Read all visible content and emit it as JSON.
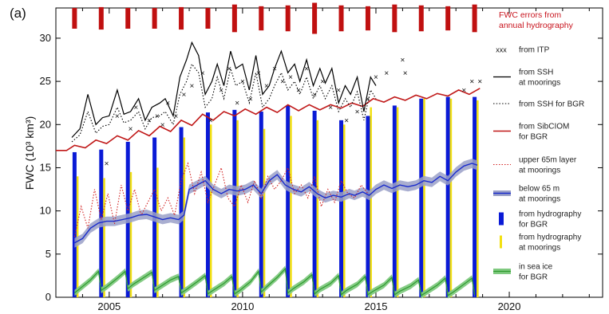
{
  "chart_data": {
    "type": "line",
    "panel_label": "(a)",
    "ylabel": "FWC (10³ km³)",
    "xlim": [
      2003.0,
      2023.5
    ],
    "ylim": [
      0,
      33.5
    ],
    "xticks": [
      2005,
      2010,
      2015,
      2020
    ],
    "yticks": [
      0,
      5,
      10,
      15,
      20,
      25,
      30
    ],
    "grid": false,
    "legend_position": "right",
    "colors": {
      "ssh_moorings": "#000000",
      "ssh_bgr": "#000000",
      "sibciom": "#c01818",
      "upper65": "#d22222",
      "below65_line": "#1a2ccc",
      "below65_band": "#9aa0c8",
      "hydro_bgr": "#0a1ad6",
      "hydro_moorings": "#f2e010",
      "sea_ice_band": "#7fc97f",
      "sea_ice_line": "#2e9a2e",
      "errors": "#c01010",
      "itp": "#111111"
    },
    "errors_note": {
      "line1": "FWC errors from",
      "line2": "annual hydrography",
      "x": [
        2003.7,
        2004.7,
        2005.7,
        2006.7,
        2007.7,
        2008.7,
        2009.7,
        2010.7,
        2011.7,
        2012.7,
        2013.7,
        2014.7,
        2015.7,
        2016.7,
        2017.7,
        2018.7
      ],
      "half_height": [
        1.2,
        1.3,
        1.2,
        1.2,
        1.3,
        1.2,
        1.6,
        1.4,
        1.5,
        1.8,
        1.5,
        1.4,
        1.6,
        1.5,
        1.4,
        1.6
      ]
    },
    "series": [
      {
        "key": "ssh_moorings",
        "name": "from SSH at moorings",
        "x": [
          2003.6,
          2003.9,
          2004.2,
          2004.5,
          2004.75,
          2005.0,
          2005.3,
          2005.55,
          2005.8,
          2006.1,
          2006.35,
          2006.6,
          2006.9,
          2007.1,
          2007.4,
          2007.65,
          2007.9,
          2008.1,
          2008.35,
          2008.6,
          2008.85,
          2009.05,
          2009.3,
          2009.55,
          2009.75,
          2010.0,
          2010.25,
          2010.5,
          2010.75,
          2011.0,
          2011.2,
          2011.45,
          2011.7,
          2011.95,
          2012.15,
          2012.4,
          2012.65,
          2012.9,
          2013.1,
          2013.35,
          2013.6,
          2013.85,
          2014.05,
          2014.3,
          2014.55,
          2014.8,
          2015.0
        ],
        "y": [
          18.5,
          19.5,
          23.5,
          20.0,
          20.8,
          21.0,
          24.0,
          21.2,
          21.5,
          23.0,
          20.5,
          22.0,
          22.5,
          23.0,
          21.0,
          25.5,
          27.5,
          29.5,
          28.0,
          23.5,
          25.0,
          27.0,
          24.5,
          28.5,
          26.5,
          27.0,
          24.0,
          28.0,
          23.5,
          24.5,
          26.5,
          28.5,
          26.0,
          27.0,
          25.0,
          27.5,
          24.5,
          26.5,
          24.8,
          26.5,
          22.5,
          24.5,
          23.5,
          25.5,
          21.5,
          25.5,
          24.5
        ]
      },
      {
        "key": "ssh_bgr",
        "name": "from SSH for BGR",
        "x": [
          2003.6,
          2003.9,
          2004.2,
          2004.5,
          2004.75,
          2005.0,
          2005.3,
          2005.55,
          2005.8,
          2006.1,
          2006.35,
          2006.6,
          2006.9,
          2007.1,
          2007.4,
          2007.65,
          2007.9,
          2008.1,
          2008.35,
          2008.6,
          2008.85,
          2009.05,
          2009.3,
          2009.55,
          2009.75,
          2010.0,
          2010.25,
          2010.5,
          2010.75,
          2011.0,
          2011.2,
          2011.45,
          2011.7,
          2011.95,
          2012.15,
          2012.4,
          2012.65,
          2012.9,
          2013.1,
          2013.35,
          2013.6,
          2013.85,
          2014.05,
          2014.3,
          2014.55,
          2014.8,
          2015.0
        ],
        "y": [
          18.0,
          18.8,
          21.5,
          19.0,
          19.8,
          20.0,
          22.0,
          20.2,
          20.5,
          21.5,
          19.5,
          20.8,
          21.0,
          21.5,
          20.0,
          23.5,
          25.0,
          27.0,
          26.0,
          22.0,
          23.0,
          25.5,
          23.0,
          26.5,
          24.5,
          25.0,
          22.5,
          26.0,
          22.0,
          23.0,
          24.5,
          26.0,
          24.0,
          25.0,
          23.5,
          25.5,
          23.0,
          24.5,
          23.0,
          24.5,
          21.5,
          23.0,
          22.0,
          23.8,
          20.5,
          24.0,
          23.0
        ]
      },
      {
        "key": "sibciom",
        "name": "from SibCIOM for BGR",
        "x": [
          2003.0,
          2003.4,
          2003.7,
          2004.1,
          2004.5,
          2004.9,
          2005.3,
          2005.7,
          2006.1,
          2006.5,
          2006.9,
          2007.3,
          2007.7,
          2008.1,
          2008.5,
          2008.9,
          2009.3,
          2009.7,
          2010.1,
          2010.5,
          2010.9,
          2011.3,
          2011.7,
          2012.1,
          2012.5,
          2012.9,
          2013.3,
          2013.7,
          2014.1,
          2014.5,
          2014.9,
          2015.3,
          2015.7,
          2016.1,
          2016.5,
          2016.9,
          2017.3,
          2017.7,
          2018.1,
          2018.5,
          2018.9
        ],
        "y": [
          17.0,
          17.0,
          17.6,
          17.3,
          18.2,
          17.8,
          18.7,
          18.2,
          19.3,
          18.7,
          19.8,
          19.2,
          20.5,
          19.9,
          21.2,
          20.5,
          21.5,
          21.0,
          21.8,
          21.2,
          22.0,
          21.4,
          22.3,
          21.6,
          22.3,
          21.7,
          22.3,
          21.9,
          22.5,
          22.1,
          23.0,
          22.6,
          23.2,
          22.8,
          23.4,
          23.0,
          23.6,
          23.3,
          24.0,
          23.5,
          24.2
        ]
      },
      {
        "key": "upper65",
        "name": "upper 65m layer at moorings",
        "x": [
          2003.7,
          2003.95,
          2004.2,
          2004.45,
          2004.7,
          2004.95,
          2005.2,
          2005.45,
          2005.7,
          2005.95,
          2006.2,
          2006.45,
          2006.7,
          2006.95,
          2007.2,
          2007.45,
          2007.7,
          2007.95,
          2008.2,
          2008.45,
          2008.7,
          2008.95,
          2009.2,
          2009.45,
          2009.7,
          2009.95,
          2010.2,
          2010.45,
          2010.7,
          2010.95,
          2011.2,
          2011.45,
          2011.7,
          2011.95,
          2012.2,
          2012.45,
          2012.7,
          2012.95,
          2013.2,
          2013.45,
          2013.7,
          2013.95,
          2014.2,
          2014.45,
          2014.7
        ],
        "y": [
          7.0,
          10.5,
          8.0,
          12.5,
          9.0,
          12.0,
          8.5,
          13.0,
          10.0,
          12.5,
          9.5,
          11.0,
          12.5,
          10.0,
          11.5,
          9.5,
          13.5,
          15.5,
          12.0,
          14.5,
          11.0,
          13.0,
          15.0,
          11.5,
          10.5,
          13.0,
          11.0,
          13.5,
          11.5,
          14.0,
          12.5,
          13.5,
          15.0,
          12.0,
          13.0,
          11.5,
          14.0,
          10.5,
          12.5,
          11.0,
          13.5,
          12.0,
          11.5,
          13.0,
          12.0
        ]
      },
      {
        "key": "below65",
        "name": "below 65 m at moorings",
        "x": [
          2003.7,
          2004.0,
          2004.3,
          2004.6,
          2004.9,
          2005.2,
          2005.5,
          2005.8,
          2006.1,
          2006.4,
          2006.7,
          2007.0,
          2007.3,
          2007.6,
          2007.8,
          2008.0,
          2008.3,
          2008.6,
          2008.9,
          2009.2,
          2009.5,
          2009.8,
          2010.1,
          2010.4,
          2010.7,
          2011.0,
          2011.3,
          2011.6,
          2011.9,
          2012.2,
          2012.5,
          2012.8,
          2013.1,
          2013.4,
          2013.7,
          2014.0,
          2014.2,
          2014.5,
          2014.75,
          2015.0,
          2015.3,
          2015.6,
          2015.9,
          2016.2,
          2016.5,
          2016.8,
          2017.1,
          2017.4,
          2017.7,
          2018.0,
          2018.3,
          2018.6,
          2018.8
        ],
        "y": [
          6.3,
          6.8,
          8.0,
          8.6,
          8.8,
          8.8,
          9.0,
          9.2,
          9.5,
          9.6,
          9.3,
          9.0,
          9.2,
          9.0,
          9.5,
          12.5,
          13.0,
          13.5,
          12.5,
          12.0,
          12.5,
          12.3,
          12.5,
          13.0,
          12.0,
          13.5,
          14.2,
          13.0,
          12.5,
          12.2,
          12.8,
          12.0,
          11.5,
          11.8,
          11.6,
          12.0,
          11.8,
          12.2,
          11.8,
          12.5,
          13.0,
          12.6,
          13.0,
          12.8,
          13.0,
          13.5,
          13.3,
          14.0,
          13.5,
          14.5,
          15.2,
          15.5,
          15.3
        ]
      },
      {
        "key": "sea_ice",
        "name": "in sea ice for BGR",
        "x": [
          2003.7,
          2003.9,
          2004.3,
          2004.6,
          2004.7,
          2004.9,
          2005.3,
          2005.6,
          2005.7,
          2005.9,
          2006.3,
          2006.6,
          2006.7,
          2006.9,
          2007.3,
          2007.6,
          2007.7,
          2007.9,
          2008.3,
          2008.6,
          2008.7,
          2008.9,
          2009.3,
          2009.6,
          2009.7,
          2009.9,
          2010.3,
          2010.6,
          2010.7,
          2010.9,
          2011.3,
          2011.6,
          2011.7,
          2011.9,
          2012.3,
          2012.6,
          2012.7,
          2012.9,
          2013.3,
          2013.6,
          2013.7,
          2013.9,
          2014.3,
          2014.6,
          2014.7,
          2014.9,
          2015.3,
          2015.6,
          2015.7,
          2015.9,
          2016.3,
          2016.6,
          2016.7,
          2016.9,
          2017.3,
          2017.6,
          2017.7,
          2017.9,
          2018.3,
          2018.6,
          2018.7
        ],
        "y": [
          0.5,
          1.0,
          2.0,
          3.0,
          0.8,
          1.2,
          2.2,
          3.0,
          1.0,
          1.5,
          2.3,
          2.9,
          0.8,
          1.2,
          2.0,
          2.4,
          0.5,
          0.9,
          1.8,
          2.5,
          0.4,
          0.8,
          1.6,
          2.4,
          0.4,
          0.8,
          1.8,
          3.0,
          0.6,
          1.2,
          2.3,
          3.3,
          0.5,
          1.0,
          1.8,
          2.6,
          0.4,
          0.9,
          1.6,
          2.5,
          0.3,
          0.8,
          1.5,
          2.4,
          0.3,
          0.7,
          1.4,
          2.3,
          0.3,
          0.7,
          1.3,
          2.0,
          0.2,
          0.6,
          1.4,
          2.2,
          0.2,
          0.6,
          1.5,
          2.2,
          0.3
        ]
      },
      {
        "key": "itp",
        "name": "from ITP",
        "x": [
          2004.9,
          2005.3,
          2005.8,
          2006.0,
          2006.5,
          2006.8,
          2007.0,
          2007.2,
          2007.5,
          2007.8,
          2008.1,
          2008.5,
          2008.8,
          2009.2,
          2009.5,
          2009.8,
          2010.0,
          2010.3,
          2010.6,
          2010.9,
          2011.2,
          2011.5,
          2011.8,
          2012.1,
          2012.4,
          2012.7,
          2013.0,
          2013.3,
          2013.6,
          2013.9,
          2014.3,
          2014.7,
          2015.0,
          2015.4,
          2016.0,
          2016.1,
          2018.3,
          2018.6,
          2018.9
        ],
        "y": [
          15.5,
          21.0,
          19.5,
          22.0,
          20.5,
          21.0,
          20.0,
          22.5,
          21.0,
          23.5,
          24.5,
          26.0,
          20.5,
          24.0,
          26.5,
          22.5,
          25.0,
          23.0,
          26.0,
          24.5,
          26.5,
          25.0,
          25.5,
          24.0,
          26.5,
          23.5,
          25.0,
          22.0,
          24.0,
          20.5,
          21.5,
          23.0,
          25.5,
          26.0,
          27.5,
          26.0,
          24.0,
          25.0,
          25.0
        ]
      },
      {
        "key": "hydro_bgr",
        "name": "from hydrography for BGR",
        "x": [
          2003.7,
          2004.7,
          2005.7,
          2006.7,
          2007.7,
          2008.7,
          2009.7,
          2010.7,
          2011.7,
          2012.7,
          2013.7,
          2014.7,
          2015.7,
          2016.7,
          2017.7,
          2018.7
        ],
        "y": [
          16.8,
          17.1,
          18.0,
          18.5,
          19.7,
          21.4,
          21.7,
          21.5,
          22.2,
          21.6,
          20.5,
          21.0,
          22.2,
          23.0,
          23.2,
          23.2
        ]
      },
      {
        "key": "hydro_moorings",
        "name": "from hydrography at moorings",
        "x": [
          2003.7,
          2004.7,
          2005.7,
          2006.7,
          2007.7,
          2008.7,
          2009.7,
          2010.7,
          2011.7,
          2012.7,
          2013.7,
          2014.7,
          2015.7,
          2016.7,
          2017.7,
          2018.7
        ],
        "y": [
          14.0,
          13.8,
          14.5,
          15.0,
          18.5,
          20.0,
          20.5,
          19.5,
          21.0,
          20.5,
          20.0,
          22.0,
          22.0,
          23.0,
          23.0,
          22.8
        ]
      }
    ],
    "legend": [
      {
        "key": "itp",
        "lines": [
          "from ITP"
        ],
        "symbol": "xxx"
      },
      {
        "key": "ssh_moorings",
        "lines": [
          "from SSH",
          "at moorings"
        ]
      },
      {
        "key": "ssh_bgr",
        "lines": [
          "from SSH for BGR"
        ]
      },
      {
        "key": "sibciom",
        "lines": [
          "from SibCIOM",
          "for BGR"
        ]
      },
      {
        "key": "upper65",
        "lines": [
          "upper 65m layer",
          "at moorings"
        ]
      },
      {
        "key": "below65",
        "lines": [
          "below 65 m",
          "at moorings"
        ]
      },
      {
        "key": "hydro_bgr",
        "lines": [
          "from hydrography",
          "for BGR"
        ]
      },
      {
        "key": "hydro_moorings",
        "lines": [
          "from hydrography",
          "at moorings"
        ]
      },
      {
        "key": "sea_ice",
        "lines": [
          "in sea ice",
          "for BGR"
        ]
      }
    ]
  }
}
